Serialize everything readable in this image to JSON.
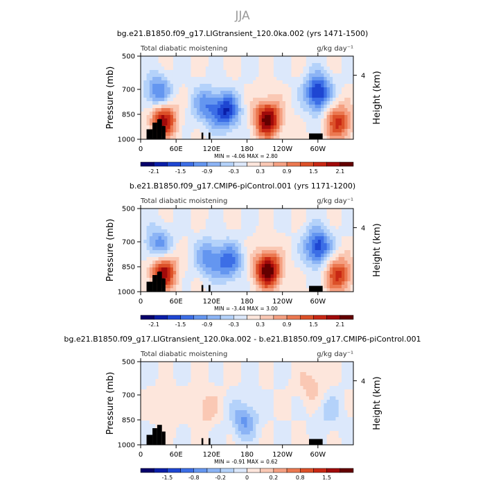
{
  "figure": {
    "title": "JJA",
    "colors": {
      "title_gray": "#999999",
      "black_fill": "#000000",
      "palette": [
        "#08006b",
        "#0a1ea8",
        "#1e46d2",
        "#3c6ee6",
        "#6496f0",
        "#8cb4f5",
        "#b4d2fa",
        "#dce8fb",
        "#fde6dc",
        "#fac8b4",
        "#f5a082",
        "#eb7850",
        "#dc5028",
        "#c82814",
        "#a00a0a",
        "#640000"
      ]
    }
  },
  "chart_data": [
    {
      "type": "heatmap",
      "title": "bg.e21.B1850.f09_g17.LIGtransient_120.0ka.002 (yrs 1471-1500)",
      "subtitle_left": "Total diabatic moistening",
      "units": "g/kg day⁻¹",
      "ylabel": "Pressure (mb)",
      "ylabel_right": "Height (km)",
      "xticks": [
        "0",
        "60E",
        "120E",
        "180",
        "120W",
        "60W"
      ],
      "xlim": [
        0,
        360
      ],
      "yticks": [
        "500",
        "700",
        "850",
        "1000"
      ],
      "ylim": [
        1000,
        500
      ],
      "right_ticks": [
        "4"
      ],
      "minmax_text": "MIN =   -4.06   MAX =    2.80",
      "colorbar_labels": [
        "-2.1",
        "-1.5",
        "-0.9",
        "-0.3",
        "0.3",
        "0.9",
        "1.5",
        "2.1"
      ],
      "features": [
        {
          "lon": 38,
          "p": 880,
          "v": 2.4
        },
        {
          "lon": 30,
          "p": 730,
          "v": -1.6
        },
        {
          "lon": 110,
          "p": 800,
          "v": -1.2
        },
        {
          "lon": 145,
          "p": 830,
          "v": -2.0
        },
        {
          "lon": 215,
          "p": 880,
          "v": 2.6
        },
        {
          "lon": 300,
          "p": 720,
          "v": -2.2
        },
        {
          "lon": 335,
          "p": 900,
          "v": 1.8
        }
      ]
    },
    {
      "type": "heatmap",
      "title": "b.e21.B1850.f09_g17.CMIP6-piControl.001 (yrs 1171-1200)",
      "subtitle_left": "Total diabatic moistening",
      "units": "g/kg day⁻¹",
      "ylabel": "Pressure (mb)",
      "ylabel_right": "Height (km)",
      "xticks": [
        "0",
        "60E",
        "120E",
        "180",
        "120W",
        "60W"
      ],
      "xlim": [
        0,
        360
      ],
      "yticks": [
        "500",
        "700",
        "850",
        "1000"
      ],
      "ylim": [
        1000,
        500
      ],
      "right_ticks": [
        "4"
      ],
      "minmax_text": "MIN =   -3.44   MAX =    3.00",
      "colorbar_labels": [
        "-2.1",
        "-1.5",
        "-0.9",
        "-0.3",
        "0.3",
        "0.9",
        "1.5",
        "2.1"
      ],
      "features": [
        {
          "lon": 38,
          "p": 880,
          "v": 2.4
        },
        {
          "lon": 30,
          "p": 730,
          "v": -1.4
        },
        {
          "lon": 115,
          "p": 800,
          "v": -1.2
        },
        {
          "lon": 150,
          "p": 820,
          "v": -1.5
        },
        {
          "lon": 215,
          "p": 870,
          "v": 2.8
        },
        {
          "lon": 300,
          "p": 730,
          "v": -2.0
        },
        {
          "lon": 335,
          "p": 900,
          "v": 1.8
        }
      ]
    },
    {
      "type": "heatmap",
      "title": "bg.e21.B1850.f09_g17.LIGtransient_120.0ka.002 - b.e21.B1850.f09_g17.CMIP6-piControl.001",
      "subtitle_left": "Total diabatic moistening",
      "units": "g/kg day⁻¹",
      "ylabel": "Pressure (mb)",
      "ylabel_right": "Height (km)",
      "xticks": [
        "0",
        "60E",
        "120E",
        "180",
        "120W",
        "60W"
      ],
      "xlim": [
        0,
        360
      ],
      "yticks": [
        "500",
        "700",
        "850",
        "1000"
      ],
      "ylim": [
        1000,
        500
      ],
      "right_ticks": [
        "4"
      ],
      "minmax_text": "MIN =   -0.91   MAX =    0.62",
      "colorbar_labels": [
        "-1.5",
        "-0.8",
        "-0.2",
        "0",
        "0.2",
        "0.8",
        "1.5"
      ],
      "features": [
        {
          "lon": 45,
          "p": 780,
          "v": 0.3
        },
        {
          "lon": 110,
          "p": 780,
          "v": 0.4
        },
        {
          "lon": 175,
          "p": 850,
          "v": -0.8
        },
        {
          "lon": 290,
          "p": 640,
          "v": 0.4
        },
        {
          "lon": 320,
          "p": 800,
          "v": -0.4
        }
      ]
    }
  ]
}
